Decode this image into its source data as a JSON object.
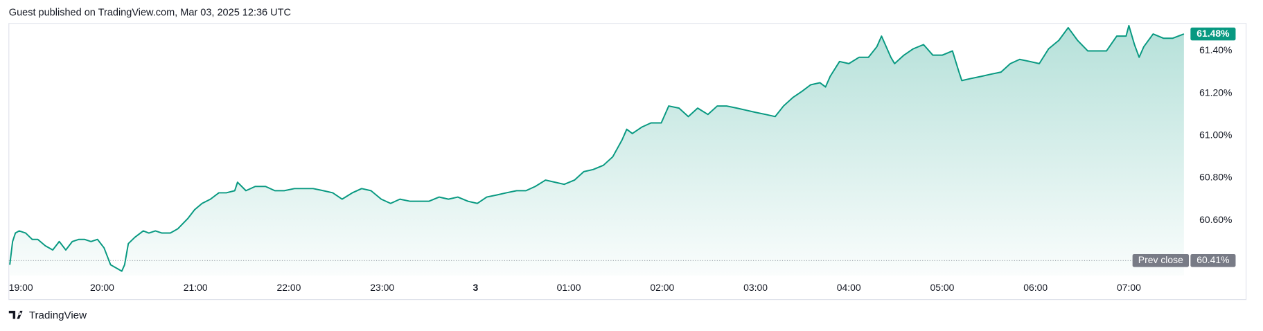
{
  "header": "Guest published on TradingView.com, Mar 03, 2025 12:36 UTC",
  "footer": "TradingView",
  "chart_data": {
    "type": "area",
    "color": "#089981",
    "x": [
      0.01,
      0.04,
      0.07,
      0.11,
      0.18,
      0.25,
      0.31,
      0.39,
      0.47,
      0.54,
      0.61,
      0.68,
      0.75,
      0.81,
      0.88,
      0.95,
      1.02,
      1.09,
      1.17,
      1.21,
      1.24,
      1.28,
      1.35,
      1.44,
      1.5,
      1.57,
      1.64,
      1.73,
      1.81,
      1.92,
      1.99,
      2.07,
      2.16,
      2.25,
      2.33,
      2.42,
      2.45,
      2.54,
      2.64,
      2.75,
      2.85,
      2.95,
      3.06,
      3.16,
      3.26,
      3.37,
      3.47,
      3.57,
      3.68,
      3.78,
      3.88,
      3.99,
      4.09,
      4.19,
      4.3,
      4.4,
      4.5,
      4.61,
      4.71,
      4.81,
      4.92,
      5.02,
      5.12,
      5.23,
      5.33,
      5.44,
      5.54,
      5.64,
      5.75,
      5.85,
      5.95,
      6.06,
      6.16,
      6.26,
      6.37,
      6.47,
      6.57,
      6.62,
      6.68,
      6.78,
      6.88,
      6.99,
      7.04,
      7.07,
      7.18,
      7.28,
      7.38,
      7.49,
      7.59,
      7.69,
      7.8,
      7.9,
      8.0,
      8.11,
      8.21,
      8.3,
      8.4,
      8.5,
      8.59,
      8.69,
      8.75,
      8.8,
      8.9,
      9.0,
      9.11,
      9.21,
      9.3,
      9.35,
      9.45,
      9.49,
      9.59,
      9.69,
      9.8,
      9.9,
      10.0,
      10.11,
      10.18,
      10.21,
      10.31,
      10.42,
      10.52,
      10.63,
      10.73,
      10.83,
      10.94,
      11.04,
      11.14,
      11.25,
      11.35,
      11.45,
      11.56,
      11.66,
      11.76,
      11.87,
      11.97,
      12.0,
      12.06,
      12.11,
      12.16,
      12.26,
      12.37,
      12.47,
      12.59
    ],
    "values": [
      60.39,
      60.5,
      60.54,
      60.55,
      60.54,
      60.51,
      60.51,
      60.48,
      60.46,
      60.5,
      60.46,
      60.5,
      60.51,
      60.51,
      60.5,
      60.51,
      60.47,
      60.39,
      60.37,
      60.36,
      60.39,
      60.49,
      60.52,
      60.55,
      60.54,
      60.55,
      60.54,
      60.54,
      60.56,
      60.61,
      60.65,
      60.68,
      60.7,
      60.73,
      60.73,
      60.74,
      60.78,
      60.74,
      60.76,
      60.76,
      60.74,
      60.74,
      60.75,
      60.75,
      60.75,
      60.74,
      60.73,
      60.7,
      60.73,
      60.75,
      60.74,
      60.7,
      60.68,
      60.7,
      60.69,
      60.69,
      60.69,
      60.71,
      60.7,
      60.71,
      60.69,
      60.68,
      60.71,
      60.72,
      60.73,
      60.74,
      60.74,
      60.76,
      60.79,
      60.78,
      60.77,
      60.79,
      60.83,
      60.84,
      60.86,
      60.9,
      60.98,
      61.03,
      61.01,
      61.04,
      61.06,
      61.06,
      61.11,
      61.14,
      61.13,
      61.09,
      61.13,
      61.1,
      61.14,
      61.14,
      61.13,
      61.12,
      61.11,
      61.1,
      61.09,
      61.14,
      61.18,
      61.21,
      61.24,
      61.25,
      61.23,
      61.28,
      61.35,
      61.34,
      61.37,
      61.37,
      61.42,
      61.47,
      61.37,
      61.34,
      61.38,
      61.41,
      61.43,
      61.38,
      61.38,
      61.4,
      61.3,
      61.26,
      61.27,
      61.28,
      61.29,
      61.3,
      61.34,
      61.36,
      61.35,
      61.34,
      61.41,
      61.45,
      61.51,
      61.45,
      61.4,
      61.4,
      61.4,
      61.47,
      61.47,
      61.52,
      61.43,
      61.37,
      61.42,
      61.48,
      61.46,
      61.46,
      61.48
    ],
    "xlim": [
      0,
      12.6
    ],
    "xticks": [
      {
        "value": 0,
        "label": "19:00"
      },
      {
        "value": 1,
        "label": "20:00"
      },
      {
        "value": 2,
        "label": "21:00"
      },
      {
        "value": 3,
        "label": "22:00"
      },
      {
        "value": 4,
        "label": "23:00"
      },
      {
        "value": 5,
        "label": "3"
      },
      {
        "value": 6,
        "label": "01:00"
      },
      {
        "value": 7,
        "label": "02:00"
      },
      {
        "value": 8,
        "label": "03:00"
      },
      {
        "value": 9,
        "label": "04:00"
      },
      {
        "value": 10,
        "label": "05:00"
      },
      {
        "value": 11,
        "label": "06:00"
      },
      {
        "value": 12,
        "label": "07:00"
      }
    ],
    "ylim": [
      60.34,
      61.53
    ],
    "yticks": [
      {
        "value": 60.6,
        "label": "60.60%"
      },
      {
        "value": 60.8,
        "label": "60.80%"
      },
      {
        "value": 61.0,
        "label": "61.00%"
      },
      {
        "value": 61.2,
        "label": "61.20%"
      },
      {
        "value": 61.4,
        "label": "61.40%"
      }
    ],
    "last_value": {
      "value": 61.48,
      "label": "61.48%"
    },
    "prev_close": {
      "name": "Prev close",
      "value": 60.41,
      "label": "60.41%"
    },
    "grid": false
  }
}
